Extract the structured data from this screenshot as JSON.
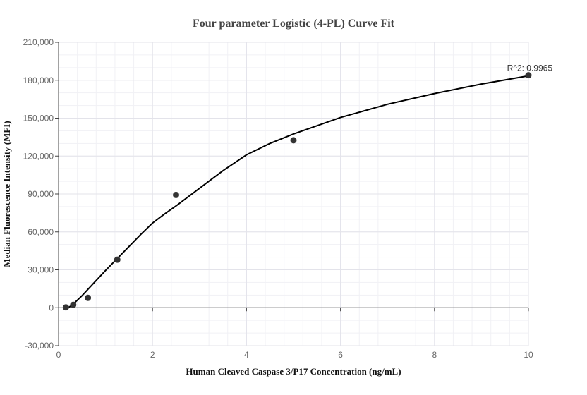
{
  "chart_data": {
    "type": "scatter",
    "title": "Four parameter Logistic (4-PL) Curve Fit",
    "xlabel": "Human Cleaved Caspase 3/P17 Concentration (ng/mL)",
    "ylabel": "Median Fluorescence Intensity (MFI)",
    "xlim": [
      0,
      10
    ],
    "ylim": [
      -30000,
      210000
    ],
    "x_ticks": [
      0,
      2,
      4,
      6,
      8,
      10
    ],
    "x_tick_labels": [
      "0",
      "2",
      "4",
      "6",
      "8",
      "10"
    ],
    "y_ticks": [
      -30000,
      0,
      30000,
      60000,
      90000,
      120000,
      150000,
      180000,
      210000
    ],
    "y_tick_labels": [
      "-30,000",
      "0",
      "30,000",
      "60,000",
      "90,000",
      "120,000",
      "150,000",
      "180,000",
      "210,000"
    ],
    "grid": true,
    "series": [
      {
        "type": "scatter",
        "x": [
          0.156,
          0.3125,
          0.625,
          1.25,
          2.5,
          5,
          10
        ],
        "y": [
          300,
          2300,
          7800,
          38000,
          89200,
          132500,
          184000
        ]
      },
      {
        "type": "line",
        "x": [
          0.15,
          0.3,
          0.5,
          0.75,
          1.0,
          1.25,
          1.5,
          1.75,
          2.0,
          2.25,
          2.5,
          3.0,
          3.5,
          4.0,
          4.5,
          5.0,
          6.0,
          7.0,
          8.0,
          9.0,
          10.0
        ],
        "y": [
          -1500,
          2500,
          9500,
          19500,
          29500,
          39000,
          48500,
          58000,
          67000,
          74000,
          80500,
          94500,
          108500,
          121000,
          130000,
          137500,
          150500,
          161000,
          169500,
          177000,
          183500
        ]
      }
    ],
    "annotations": [
      {
        "text": "R^2: 0.9965",
        "x": 10,
        "y": 184000
      }
    ],
    "colors": {
      "marker": "#333333",
      "curve": "#000000"
    }
  }
}
